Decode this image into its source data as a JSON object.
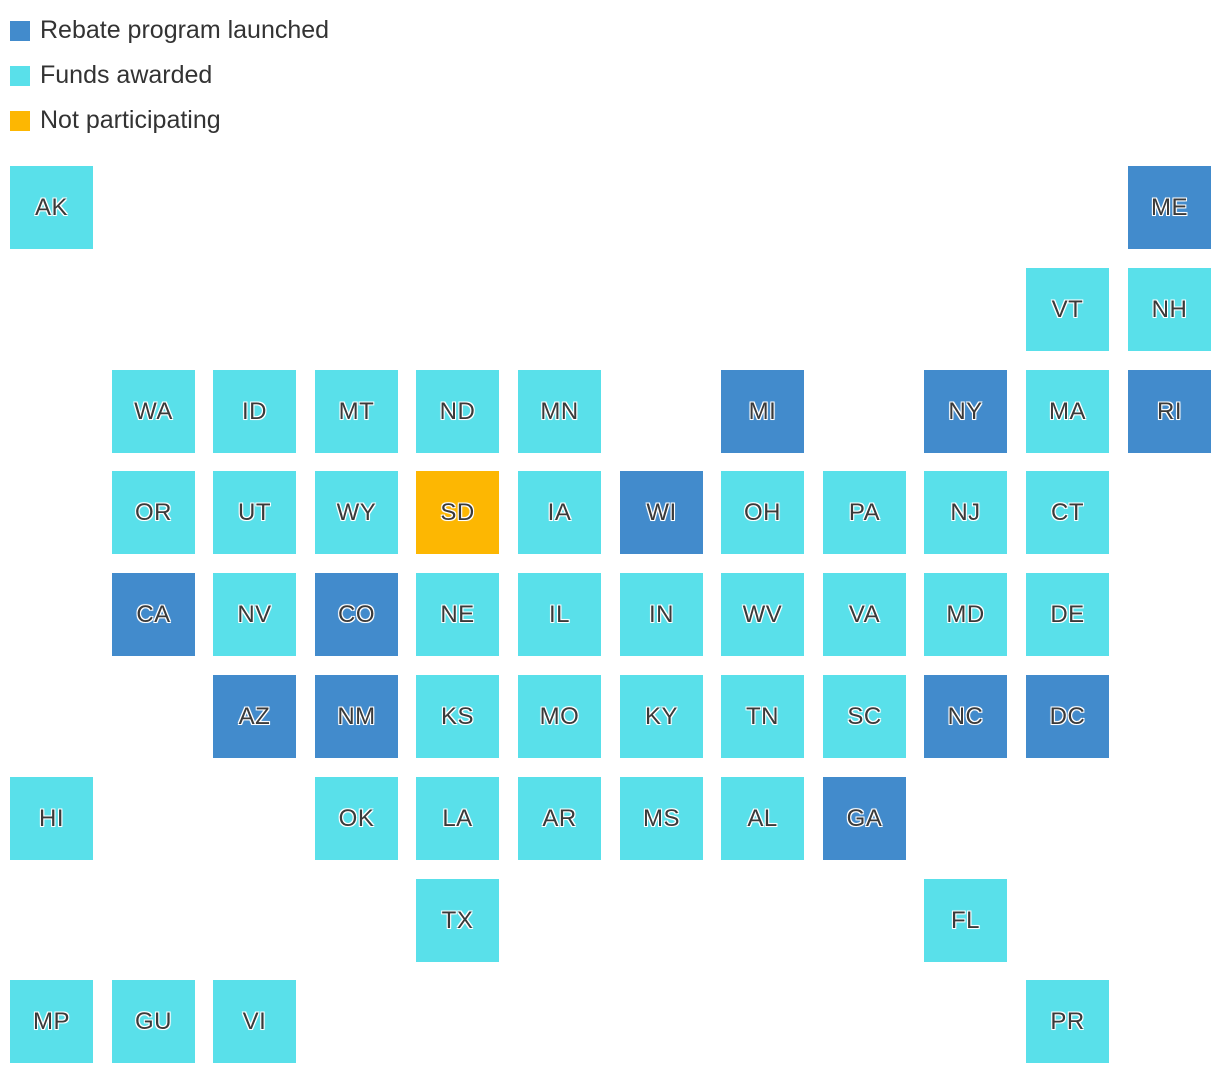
{
  "legend": {
    "items": [
      {
        "key": "launched",
        "label": "Rebate program launched",
        "color": "#428bcc"
      },
      {
        "key": "awarded",
        "label": "Funds awarded",
        "color": "#59e0ea"
      },
      {
        "key": "not_participating",
        "label": "Not participating",
        "color": "#fdb702"
      }
    ]
  },
  "map": {
    "tiles": [
      {
        "code": "AK",
        "row": 0,
        "col": 0,
        "status": "awarded"
      },
      {
        "code": "ME",
        "row": 0,
        "col": 11,
        "status": "launched"
      },
      {
        "code": "VT",
        "row": 1,
        "col": 10,
        "status": "awarded"
      },
      {
        "code": "NH",
        "row": 1,
        "col": 11,
        "status": "awarded"
      },
      {
        "code": "WA",
        "row": 2,
        "col": 1,
        "status": "awarded"
      },
      {
        "code": "ID",
        "row": 2,
        "col": 2,
        "status": "awarded"
      },
      {
        "code": "MT",
        "row": 2,
        "col": 3,
        "status": "awarded"
      },
      {
        "code": "ND",
        "row": 2,
        "col": 4,
        "status": "awarded"
      },
      {
        "code": "MN",
        "row": 2,
        "col": 5,
        "status": "awarded"
      },
      {
        "code": "MI",
        "row": 2,
        "col": 7,
        "status": "launched"
      },
      {
        "code": "NY",
        "row": 2,
        "col": 9,
        "status": "launched"
      },
      {
        "code": "MA",
        "row": 2,
        "col": 10,
        "status": "awarded"
      },
      {
        "code": "RI",
        "row": 2,
        "col": 11,
        "status": "launched"
      },
      {
        "code": "OR",
        "row": 3,
        "col": 1,
        "status": "awarded"
      },
      {
        "code": "UT",
        "row": 3,
        "col": 2,
        "status": "awarded"
      },
      {
        "code": "WY",
        "row": 3,
        "col": 3,
        "status": "awarded"
      },
      {
        "code": "SD",
        "row": 3,
        "col": 4,
        "status": "not_participating"
      },
      {
        "code": "IA",
        "row": 3,
        "col": 5,
        "status": "awarded"
      },
      {
        "code": "WI",
        "row": 3,
        "col": 6,
        "status": "launched"
      },
      {
        "code": "OH",
        "row": 3,
        "col": 7,
        "status": "awarded"
      },
      {
        "code": "PA",
        "row": 3,
        "col": 8,
        "status": "awarded"
      },
      {
        "code": "NJ",
        "row": 3,
        "col": 9,
        "status": "awarded"
      },
      {
        "code": "CT",
        "row": 3,
        "col": 10,
        "status": "awarded"
      },
      {
        "code": "CA",
        "row": 4,
        "col": 1,
        "status": "launched"
      },
      {
        "code": "NV",
        "row": 4,
        "col": 2,
        "status": "awarded"
      },
      {
        "code": "CO",
        "row": 4,
        "col": 3,
        "status": "launched"
      },
      {
        "code": "NE",
        "row": 4,
        "col": 4,
        "status": "awarded"
      },
      {
        "code": "IL",
        "row": 4,
        "col": 5,
        "status": "awarded"
      },
      {
        "code": "IN",
        "row": 4,
        "col": 6,
        "status": "awarded"
      },
      {
        "code": "WV",
        "row": 4,
        "col": 7,
        "status": "awarded"
      },
      {
        "code": "VA",
        "row": 4,
        "col": 8,
        "status": "awarded"
      },
      {
        "code": "MD",
        "row": 4,
        "col": 9,
        "status": "awarded"
      },
      {
        "code": "DE",
        "row": 4,
        "col": 10,
        "status": "awarded"
      },
      {
        "code": "AZ",
        "row": 5,
        "col": 2,
        "status": "launched"
      },
      {
        "code": "NM",
        "row": 5,
        "col": 3,
        "status": "launched"
      },
      {
        "code": "KS",
        "row": 5,
        "col": 4,
        "status": "awarded"
      },
      {
        "code": "MO",
        "row": 5,
        "col": 5,
        "status": "awarded"
      },
      {
        "code": "KY",
        "row": 5,
        "col": 6,
        "status": "awarded"
      },
      {
        "code": "TN",
        "row": 5,
        "col": 7,
        "status": "awarded"
      },
      {
        "code": "SC",
        "row": 5,
        "col": 8,
        "status": "awarded"
      },
      {
        "code": "NC",
        "row": 5,
        "col": 9,
        "status": "launched"
      },
      {
        "code": "DC",
        "row": 5,
        "col": 10,
        "status": "launched"
      },
      {
        "code": "HI",
        "row": 6,
        "col": 0,
        "status": "awarded"
      },
      {
        "code": "OK",
        "row": 6,
        "col": 3,
        "status": "awarded"
      },
      {
        "code": "LA",
        "row": 6,
        "col": 4,
        "status": "awarded"
      },
      {
        "code": "AR",
        "row": 6,
        "col": 5,
        "status": "awarded"
      },
      {
        "code": "MS",
        "row": 6,
        "col": 6,
        "status": "awarded"
      },
      {
        "code": "AL",
        "row": 6,
        "col": 7,
        "status": "awarded"
      },
      {
        "code": "GA",
        "row": 6,
        "col": 8,
        "status": "launched"
      },
      {
        "code": "TX",
        "row": 7,
        "col": 4,
        "status": "awarded"
      },
      {
        "code": "FL",
        "row": 7,
        "col": 9,
        "status": "awarded"
      },
      {
        "code": "MP",
        "row": 8,
        "col": 0,
        "status": "awarded"
      },
      {
        "code": "GU",
        "row": 8,
        "col": 1,
        "status": "awarded"
      },
      {
        "code": "VI",
        "row": 8,
        "col": 2,
        "status": "awarded"
      },
      {
        "code": "PR",
        "row": 8,
        "col": 10,
        "status": "awarded"
      }
    ]
  }
}
